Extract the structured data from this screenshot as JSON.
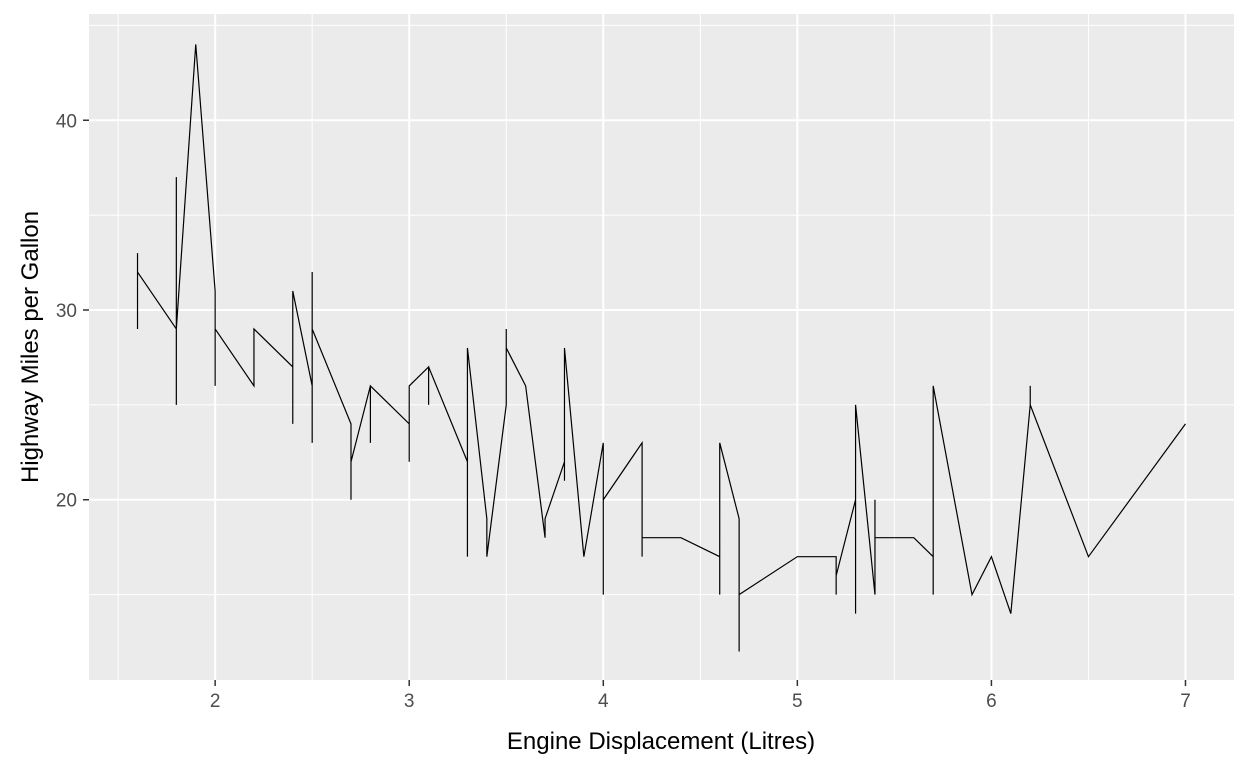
{
  "chart_data": {
    "type": "line",
    "title": "",
    "xlabel": "Engine Displacement (Litres)",
    "ylabel": "Highway Miles per Gallon",
    "xlim": [
      1.35,
      7.25
    ],
    "ylim": [
      10.5,
      45.6
    ],
    "x_ticks": [
      2,
      3,
      4,
      5,
      6,
      7
    ],
    "x_tick_labels": [
      "2",
      "3",
      "4",
      "5",
      "6",
      "7"
    ],
    "y_ticks": [
      20,
      30,
      40
    ],
    "y_tick_labels": [
      "20",
      "30",
      "40"
    ],
    "grid": true,
    "legend": "none",
    "colors": {
      "panel": "#ebebeb",
      "grid": "#ffffff",
      "line": "#000000",
      "tick_text": "#4d4d4d"
    },
    "series": [
      {
        "x": [
          1.6,
          1.6,
          1.6,
          1.6,
          1.8,
          1.8,
          1.8,
          1.8,
          1.9,
          1.9,
          2.0,
          2.0,
          2.0,
          2.0,
          2.2,
          2.2,
          2.4,
          2.4,
          2.4,
          2.4,
          2.5,
          2.5,
          2.5,
          2.5,
          2.7,
          2.7,
          2.7,
          2.8,
          2.8,
          2.8,
          3.0,
          3.0,
          3.0,
          3.1,
          3.1,
          3.1,
          3.3,
          3.3,
          3.3,
          3.4,
          3.4,
          3.5,
          3.5,
          3.5,
          3.6,
          3.7,
          3.7,
          3.8,
          3.8,
          3.8,
          3.9,
          4.0,
          4.0,
          4.0,
          4.2,
          4.2,
          4.2,
          4.4,
          4.6,
          4.6,
          4.6,
          4.7,
          4.7,
          4.7,
          5.0,
          5.2,
          5.2,
          5.2,
          5.3,
          5.3,
          5.3,
          5.4,
          5.4,
          5.4,
          5.6,
          5.7,
          5.7,
          5.7,
          5.9,
          6.0,
          6.1,
          6.2,
          6.2,
          6.2,
          6.5,
          7.0
        ],
        "y": [
          33,
          29,
          32,
          32,
          29,
          37,
          25,
          29,
          44,
          44,
          31,
          26,
          29,
          29,
          26,
          29,
          27,
          24,
          31,
          31,
          26,
          23,
          32,
          29,
          24,
          20,
          22,
          26,
          23,
          26,
          24,
          22,
          26,
          27,
          25,
          27,
          22,
          17,
          28,
          19,
          17,
          25,
          29,
          28,
          26,
          18,
          19,
          22,
          21,
          28,
          17,
          23,
          15,
          20,
          23,
          17,
          18,
          18,
          17,
          15,
          23,
          19,
          12,
          15,
          17,
          17,
          15,
          16,
          20,
          14,
          25,
          15,
          20,
          18,
          18,
          17,
          15,
          26,
          15,
          17,
          14,
          25,
          26,
          25,
          17,
          24
        ]
      }
    ]
  }
}
